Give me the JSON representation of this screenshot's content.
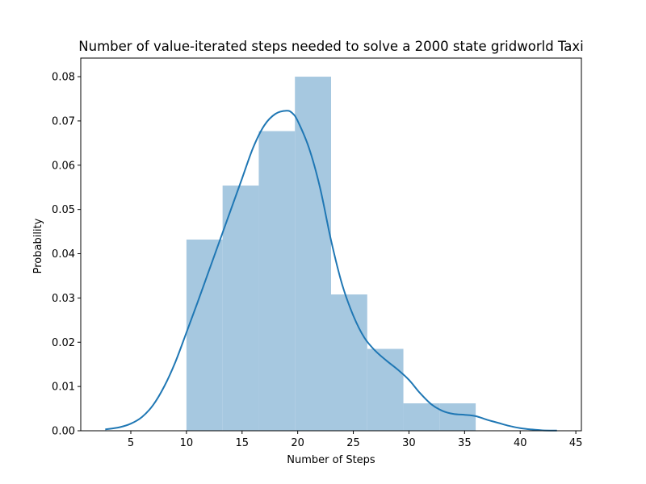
{
  "chart_data": {
    "type": "histogram",
    "title": "Number of value-iterated steps needed to solve a 2000 state gridworld Taxi",
    "xlabel": "Number of Steps",
    "ylabel": "Probability",
    "xlim": [
      0.5,
      45.5
    ],
    "ylim": [
      0,
      0.0842
    ],
    "xticks": [
      5,
      10,
      15,
      20,
      25,
      30,
      35,
      40,
      45
    ],
    "yticks": [
      "0.00",
      "0.01",
      "0.02",
      "0.03",
      "0.04",
      "0.05",
      "0.06",
      "0.07",
      "0.08"
    ],
    "grid": false,
    "bars": [
      {
        "x0": 10.0,
        "x1": 13.25,
        "value": 0.0432
      },
      {
        "x0": 13.25,
        "x1": 16.5,
        "value": 0.0554
      },
      {
        "x0": 16.5,
        "x1": 19.75,
        "value": 0.0677
      },
      {
        "x0": 19.75,
        "x1": 23.0,
        "value": 0.08
      },
      {
        "x0": 23.0,
        "x1": 26.25,
        "value": 0.0308
      },
      {
        "x0": 26.25,
        "x1": 29.5,
        "value": 0.0185
      },
      {
        "x0": 29.5,
        "x1": 32.75,
        "value": 0.0062
      },
      {
        "x0": 32.75,
        "x1": 36.0,
        "value": 0.0062
      }
    ],
    "kde": {
      "x": [
        2.7,
        4,
        5,
        6,
        7,
        8,
        9,
        10,
        11,
        12,
        13,
        14,
        15,
        16,
        17,
        18,
        19,
        19.5,
        20,
        21,
        22,
        23,
        24,
        25,
        26,
        27,
        28,
        29,
        30,
        31,
        32,
        33,
        34,
        35,
        36,
        37,
        38,
        39,
        40,
        41,
        42,
        43.3
      ],
      "y": [
        0.0003,
        0.0008,
        0.0016,
        0.0031,
        0.0058,
        0.01,
        0.0155,
        0.0222,
        0.029,
        0.036,
        0.043,
        0.05,
        0.057,
        0.064,
        0.069,
        0.0716,
        0.0723,
        0.0718,
        0.07,
        0.064,
        0.055,
        0.043,
        0.033,
        0.026,
        0.021,
        0.018,
        0.0158,
        0.0138,
        0.0115,
        0.0085,
        0.006,
        0.0045,
        0.0038,
        0.0036,
        0.0033,
        0.0025,
        0.0018,
        0.0011,
        0.0006,
        0.0003,
        0.0001,
        5e-05
      ]
    },
    "colors": {
      "bar": "#a6c8e0",
      "kde": "#1f77b4",
      "axis": "#000000"
    }
  }
}
